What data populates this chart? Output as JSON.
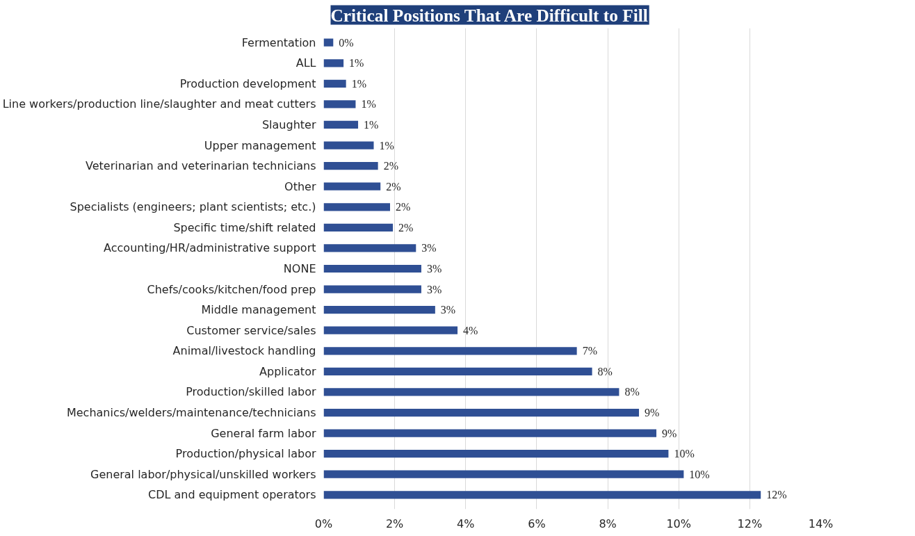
{
  "chart_data": {
    "type": "bar",
    "orientation": "horizontal",
    "title": "Critical Positions That Are Difficult to Fill",
    "categories": [
      "Fermentation",
      "ALL",
      "Production development",
      "Line workers/production line/slaughter and meat cutters",
      "Slaughter",
      "Upper management",
      "Veterinarian and veterinarian technicians",
      "Other",
      "Specialists (engineers; plant scientists; etc.)",
      "Specific time/shift related",
      "Accounting/HR/administrative support",
      "NONE",
      "Chefs/cooks/kitchen/food prep",
      "Middle management",
      "Customer service/sales",
      "Animal/livestock handling",
      "Applicator",
      "Production/skilled labor",
      "Mechanics/welders/maintenance/technicians",
      "General farm labor",
      "Production/physical labor",
      "General labor/physical/unskilled workers",
      "CDL and equipment operators"
    ],
    "values": [
      0.27,
      0.56,
      0.63,
      0.9,
      0.97,
      1.41,
      1.53,
      1.6,
      1.87,
      1.95,
      2.6,
      2.75,
      2.75,
      3.14,
      3.77,
      7.13,
      7.56,
      8.32,
      8.88,
      9.37,
      9.71,
      10.14,
      12.31
    ],
    "value_labels": [
      "0%",
      "1%",
      "1%",
      "1%",
      "1%",
      "1%",
      "2%",
      "2%",
      "2%",
      "2%",
      "3%",
      "3%",
      "3%",
      "3%",
      "4%",
      "7%",
      "8%",
      "8%",
      "9%",
      "9%",
      "10%",
      "10%",
      "12%"
    ],
    "color": "#2f4f94",
    "xlim": [
      0,
      14
    ],
    "xticks": [
      {
        "value": 0,
        "label": "0%"
      },
      {
        "value": 2,
        "label": "2%"
      },
      {
        "value": 4,
        "label": "4%"
      },
      {
        "value": 6,
        "label": "6%"
      },
      {
        "value": 8,
        "label": "8%"
      },
      {
        "value": 10,
        "label": "10%"
      },
      {
        "value": 12,
        "label": "12%"
      },
      {
        "value": 14,
        "label": "14%"
      }
    ],
    "grid": "x"
  }
}
